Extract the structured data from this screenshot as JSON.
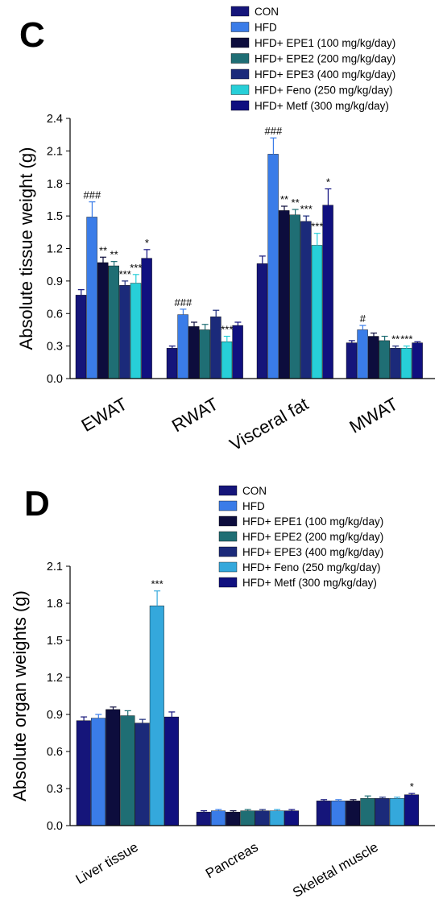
{
  "colors": {
    "CON": "#15157a",
    "HFD": "#3a7ce8",
    "EPE1": "#0d0d3d",
    "EPE2": "#1f6e74",
    "EPE3": "#1b2a7a",
    "Feno": "#27cfd8",
    "Metf": "#10107f",
    "Feno_D": "#34a8dc"
  },
  "chart_data": [
    {
      "type": "bar",
      "panel": "C",
      "ylabel": "Absolute tissue weight (g)",
      "xlabel": "",
      "ylim": [
        0.0,
        2.4
      ],
      "yticks": [
        "0.0",
        "0.3",
        "0.6",
        "0.9",
        "1.2",
        "1.5",
        "1.8",
        "2.1",
        "2.4"
      ],
      "categories": [
        "EWAT",
        "RWAT",
        "Visceral fat",
        "MWAT"
      ],
      "series": [
        {
          "name": "CON",
          "key": "CON",
          "values": [
            0.77,
            0.28,
            1.06,
            0.33
          ],
          "errors": [
            0.05,
            0.02,
            0.07,
            0.02
          ],
          "sig": [
            "",
            "",
            "",
            ""
          ]
        },
        {
          "name": "HFD",
          "key": "HFD",
          "values": [
            1.49,
            0.59,
            2.07,
            0.45
          ],
          "errors": [
            0.14,
            0.05,
            0.15,
            0.04
          ],
          "sig": [
            "###",
            "###",
            "###",
            "#"
          ]
        },
        {
          "name": "HFD+ EPE1 (100 mg/kg/day)",
          "key": "EPE1",
          "values": [
            1.07,
            0.48,
            1.55,
            0.39
          ],
          "errors": [
            0.05,
            0.04,
            0.04,
            0.03
          ],
          "sig": [
            "**",
            "",
            "**",
            ""
          ]
        },
        {
          "name": "HFD+ EPE2 (200 mg/kg/day)",
          "key": "EPE2",
          "values": [
            1.04,
            0.45,
            1.51,
            0.35
          ],
          "errors": [
            0.04,
            0.05,
            0.05,
            0.04
          ],
          "sig": [
            "**",
            "",
            "**",
            ""
          ]
        },
        {
          "name": "HFD+ EPE3 (400 mg/kg/day)",
          "key": "EPE3",
          "values": [
            0.86,
            0.57,
            1.45,
            0.28
          ],
          "errors": [
            0.04,
            0.06,
            0.05,
            0.02
          ],
          "sig": [
            "***",
            "",
            "***",
            "**"
          ]
        },
        {
          "name": "HFD+ Feno (250 mg/kg/day)",
          "key": "Feno",
          "values": [
            0.88,
            0.34,
            1.23,
            0.28
          ],
          "errors": [
            0.08,
            0.05,
            0.11,
            0.02
          ],
          "sig": [
            "***",
            "***",
            "***",
            "***"
          ]
        },
        {
          "name": "HFD+ Metf (300 mg/kg/day)",
          "key": "Metf",
          "values": [
            1.11,
            0.49,
            1.6,
            0.33
          ],
          "errors": [
            0.08,
            0.03,
            0.15,
            0.01
          ],
          "sig": [
            "*",
            "",
            "*",
            ""
          ]
        }
      ]
    },
    {
      "type": "bar",
      "panel": "D",
      "ylabel": "Absolute organ weights (g)",
      "xlabel": "",
      "ylim": [
        0.0,
        2.1
      ],
      "yticks": [
        "0.0",
        "0.3",
        "0.6",
        "0.9",
        "1.2",
        "1.5",
        "1.8",
        "2.1"
      ],
      "categories": [
        "Liver tissue",
        "Pancreas",
        "Skeletal muscle"
      ],
      "series": [
        {
          "name": "CON",
          "key": "CON",
          "values": [
            0.85,
            0.11,
            0.2
          ],
          "errors": [
            0.03,
            0.01,
            0.01
          ],
          "sig": [
            "",
            "",
            ""
          ]
        },
        {
          "name": "HFD",
          "key": "HFD",
          "values": [
            0.87,
            0.12,
            0.2
          ],
          "errors": [
            0.03,
            0.01,
            0.01
          ],
          "sig": [
            "",
            "",
            ""
          ]
        },
        {
          "name": "HFD+ EPE1 (100 mg/kg/day)",
          "key": "EPE1",
          "values": [
            0.94,
            0.11,
            0.2
          ],
          "errors": [
            0.02,
            0.01,
            0.01
          ],
          "sig": [
            "",
            "",
            ""
          ]
        },
        {
          "name": "HFD+ EPE2 (200 mg/kg/day)",
          "key": "EPE2",
          "values": [
            0.89,
            0.12,
            0.22
          ],
          "errors": [
            0.04,
            0.01,
            0.02
          ],
          "sig": [
            "",
            "",
            ""
          ]
        },
        {
          "name": "HFD+ EPE3 (400 mg/kg/day)",
          "key": "EPE3",
          "values": [
            0.83,
            0.12,
            0.22
          ],
          "errors": [
            0.03,
            0.01,
            0.01
          ],
          "sig": [
            "",
            "",
            ""
          ]
        },
        {
          "name": "HFD+ Feno (250 mg/kg/day)",
          "key": "Feno_D",
          "values": [
            1.78,
            0.12,
            0.22
          ],
          "errors": [
            0.12,
            0.01,
            0.01
          ],
          "sig": [
            "***",
            "",
            ""
          ]
        },
        {
          "name": "HFD+ Metf (300 mg/kg/day)",
          "key": "Metf",
          "values": [
            0.88,
            0.12,
            0.25
          ],
          "errors": [
            0.04,
            0.01,
            0.01
          ],
          "sig": [
            "",
            "",
            "*"
          ]
        }
      ]
    }
  ],
  "panels": {
    "c_label": "C",
    "d_label": "D"
  }
}
